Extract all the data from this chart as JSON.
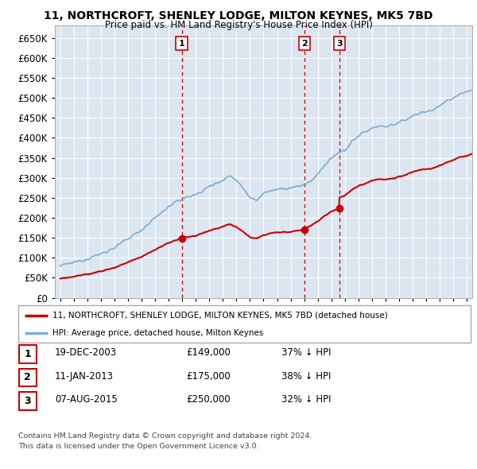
{
  "title": "11, NORTHCROFT, SHENLEY LODGE, MILTON KEYNES, MK5 7BD",
  "subtitle": "Price paid vs. HM Land Registry's House Price Index (HPI)",
  "plot_bg_color": "#dce6f1",
  "grid_color": "#ffffff",
  "ylim": [
    0,
    680000
  ],
  "yticks": [
    0,
    50000,
    100000,
    150000,
    200000,
    250000,
    300000,
    350000,
    400000,
    450000,
    500000,
    550000,
    600000,
    650000
  ],
  "xlim_min": 1994.6,
  "xlim_max": 2025.4,
  "xtick_years": [
    1995,
    1996,
    1997,
    1998,
    1999,
    2000,
    2001,
    2002,
    2003,
    2004,
    2005,
    2006,
    2007,
    2008,
    2009,
    2010,
    2011,
    2012,
    2013,
    2014,
    2015,
    2016,
    2017,
    2018,
    2019,
    2020,
    2021,
    2022,
    2023,
    2024,
    2025
  ],
  "transactions": [
    {
      "date_str": "19-DEC-2003",
      "date_x": 2003.96,
      "price": 149000,
      "label": "1",
      "pct": "37% ↓ HPI"
    },
    {
      "date_str": "11-JAN-2013",
      "date_x": 2013.03,
      "price": 175000,
      "label": "2",
      "pct": "38% ↓ HPI"
    },
    {
      "date_str": "07-AUG-2015",
      "date_x": 2015.6,
      "price": 250000,
      "label": "3",
      "pct": "32% ↓ HPI"
    }
  ],
  "legend_line1": "11, NORTHCROFT, SHENLEY LODGE, MILTON KEYNES, MK5 7BD (detached house)",
  "legend_line2": "HPI: Average price, detached house, Milton Keynes",
  "footnote1": "Contains HM Land Registry data © Crown copyright and database right 2024.",
  "footnote2": "This data is licensed under the Open Government Licence v3.0.",
  "red_color": "#cc0000",
  "blue_color": "#7aadd4",
  "vline_color": "#cc0000",
  "table_rows": [
    [
      "1",
      "19-DEC-2003",
      "£149,000",
      "37% ↓ HPI"
    ],
    [
      "2",
      "11-JAN-2013",
      "£175,000",
      "38% ↓ HPI"
    ],
    [
      "3",
      "07-AUG-2015",
      "£250,000",
      "32% ↓ HPI"
    ]
  ]
}
